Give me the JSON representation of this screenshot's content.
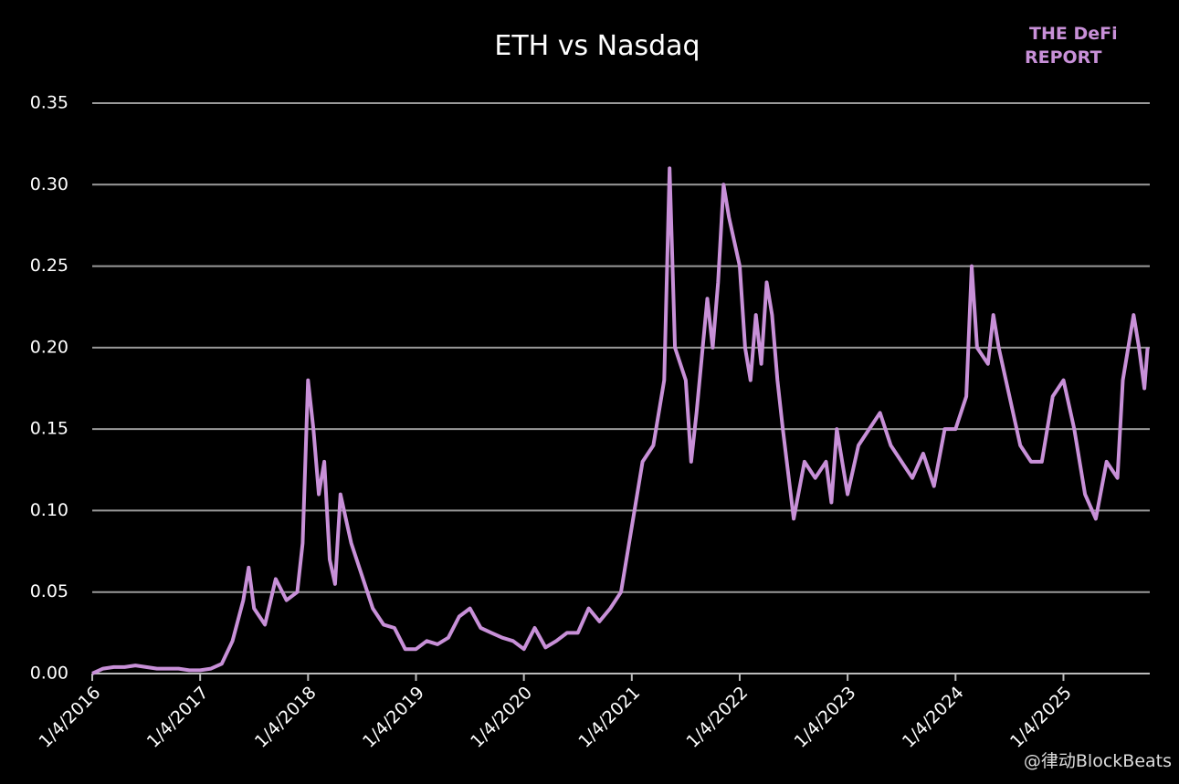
{
  "chart_data": {
    "type": "line",
    "title": "ETH vs Nasdaq",
    "logo": [
      "THE DeFi",
      "REPORT"
    ],
    "watermark": "@律动BlockBeats",
    "x": [
      2016.0,
      2016.1,
      2016.2,
      2016.3,
      2016.4,
      2016.5,
      2016.6,
      2016.7,
      2016.8,
      2016.9,
      2017.0,
      2017.1,
      2017.2,
      2017.3,
      2017.4,
      2017.45,
      2017.5,
      2017.6,
      2017.7,
      2017.8,
      2017.9,
      2017.95,
      2018.0,
      2018.05,
      2018.1,
      2018.15,
      2018.2,
      2018.25,
      2018.3,
      2018.4,
      2018.5,
      2018.6,
      2018.7,
      2018.8,
      2018.9,
      2019.0,
      2019.1,
      2019.2,
      2019.3,
      2019.4,
      2019.5,
      2019.6,
      2019.7,
      2019.8,
      2019.9,
      2020.0,
      2020.1,
      2020.2,
      2020.3,
      2020.4,
      2020.5,
      2020.6,
      2020.7,
      2020.8,
      2020.9,
      2021.0,
      2021.1,
      2021.2,
      2021.3,
      2021.35,
      2021.4,
      2021.5,
      2021.55,
      2021.6,
      2021.7,
      2021.75,
      2021.8,
      2021.85,
      2021.9,
      2022.0,
      2022.05,
      2022.1,
      2022.15,
      2022.2,
      2022.25,
      2022.3,
      2022.35,
      2022.4,
      2022.5,
      2022.6,
      2022.7,
      2022.8,
      2022.85,
      2022.9,
      2023.0,
      2023.1,
      2023.2,
      2023.3,
      2023.4,
      2023.5,
      2023.6,
      2023.7,
      2023.8,
      2023.9,
      2024.0,
      2024.1,
      2024.15,
      2024.2,
      2024.3,
      2024.35,
      2024.4,
      2024.5,
      2024.6,
      2024.7,
      2024.8,
      2024.9,
      2025.0,
      2025.1,
      2025.2,
      2025.3,
      2025.4,
      2025.5,
      2025.55,
      2025.6,
      2025.65,
      2025.7,
      2025.75,
      2025.78
    ],
    "series": [
      {
        "name": "ETH vs Nasdaq",
        "color": "#c890d8",
        "values": [
          0.0,
          0.003,
          0.004,
          0.004,
          0.005,
          0.004,
          0.003,
          0.003,
          0.003,
          0.002,
          0.002,
          0.003,
          0.006,
          0.02,
          0.045,
          0.065,
          0.04,
          0.03,
          0.058,
          0.045,
          0.05,
          0.08,
          0.18,
          0.15,
          0.11,
          0.13,
          0.07,
          0.055,
          0.11,
          0.08,
          0.06,
          0.04,
          0.03,
          0.028,
          0.015,
          0.015,
          0.02,
          0.018,
          0.022,
          0.035,
          0.04,
          0.028,
          0.025,
          0.022,
          0.02,
          0.015,
          0.028,
          0.016,
          0.02,
          0.025,
          0.025,
          0.04,
          0.032,
          0.04,
          0.05,
          0.09,
          0.13,
          0.14,
          0.18,
          0.31,
          0.2,
          0.18,
          0.13,
          0.16,
          0.23,
          0.2,
          0.24,
          0.3,
          0.28,
          0.25,
          0.2,
          0.18,
          0.22,
          0.19,
          0.24,
          0.22,
          0.18,
          0.15,
          0.095,
          0.13,
          0.12,
          0.13,
          0.105,
          0.15,
          0.11,
          0.14,
          0.15,
          0.16,
          0.14,
          0.13,
          0.12,
          0.135,
          0.115,
          0.15,
          0.15,
          0.17,
          0.25,
          0.2,
          0.19,
          0.22,
          0.2,
          0.17,
          0.14,
          0.13,
          0.13,
          0.17,
          0.18,
          0.15,
          0.11,
          0.095,
          0.13,
          0.12,
          0.18,
          0.2,
          0.22,
          0.2,
          0.175,
          0.2
        ]
      }
    ],
    "xlim": [
      2016.0,
      2025.8
    ],
    "xticks": [
      {
        "value": 2016,
        "label": "1/4/2016"
      },
      {
        "value": 2017,
        "label": "1/4/2017"
      },
      {
        "value": 2018,
        "label": "1/4/2018"
      },
      {
        "value": 2019,
        "label": "1/4/2019"
      },
      {
        "value": 2020,
        "label": "1/4/2020"
      },
      {
        "value": 2021,
        "label": "1/4/2021"
      },
      {
        "value": 2022,
        "label": "1/4/2022"
      },
      {
        "value": 2023,
        "label": "1/4/2023"
      },
      {
        "value": 2024,
        "label": "1/4/2024"
      },
      {
        "value": 2025,
        "label": "1/4/2025"
      }
    ],
    "ylim": [
      0,
      0.35
    ],
    "yticks": [
      {
        "value": 0,
        "label": "0.00"
      },
      {
        "value": 0.05,
        "label": "0.05"
      },
      {
        "value": 0.1,
        "label": "0.10"
      },
      {
        "value": 0.15,
        "label": "0.15"
      },
      {
        "value": 0.2,
        "label": "0.20"
      },
      {
        "value": 0.25,
        "label": "0.25"
      },
      {
        "value": 0.3,
        "label": "0.30"
      },
      {
        "value": 0.35,
        "label": "0.35"
      }
    ],
    "grid": true
  }
}
